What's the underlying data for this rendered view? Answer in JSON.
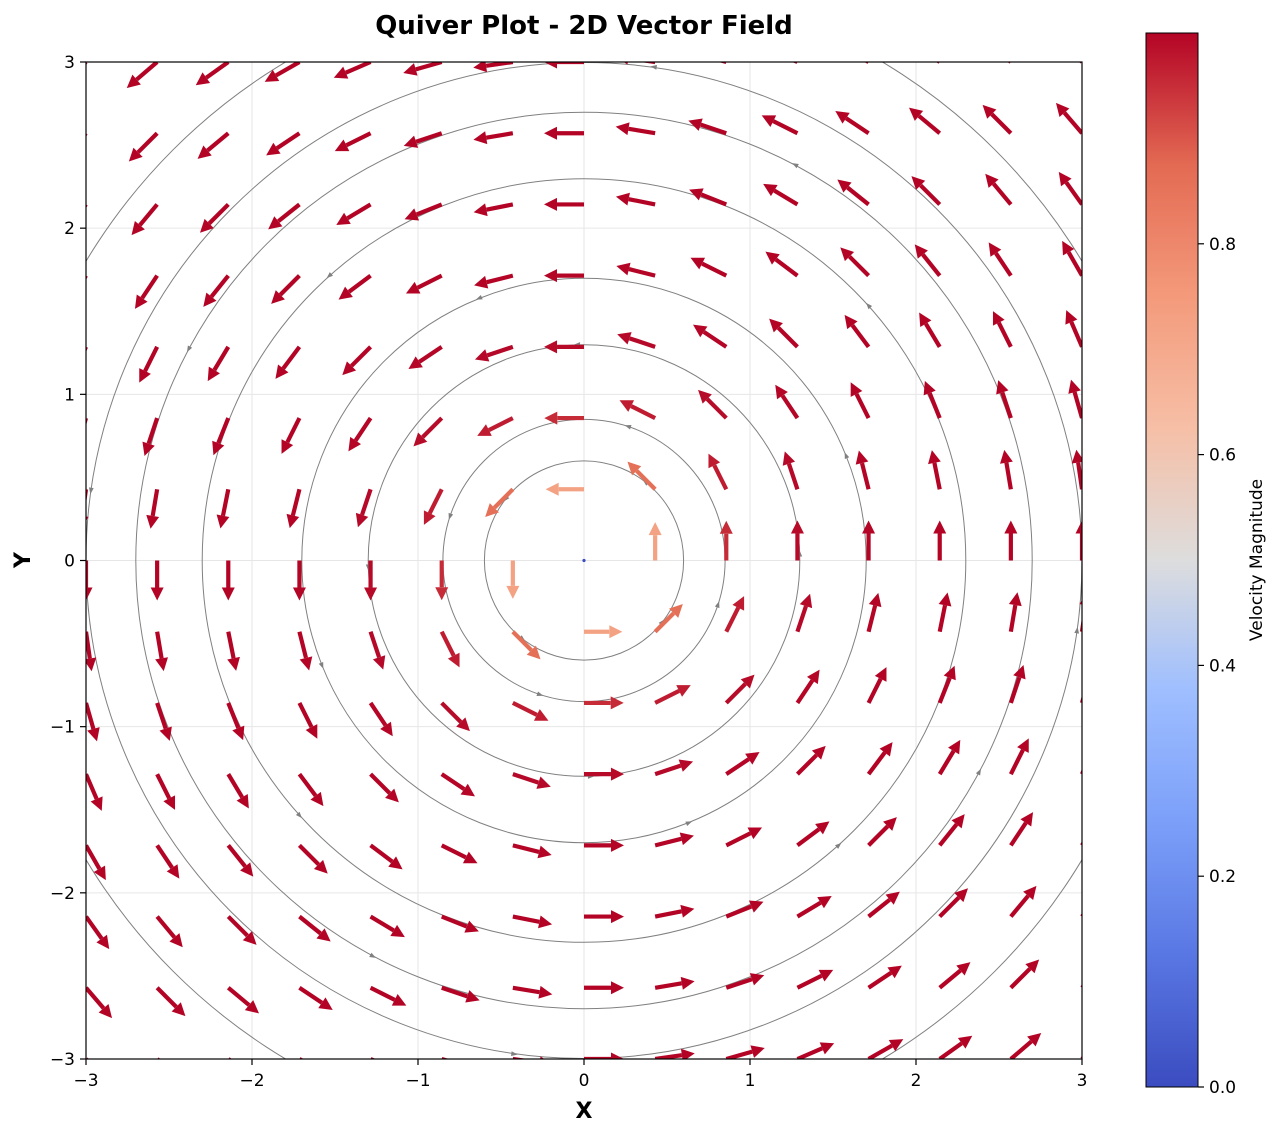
{
  "chart_data": {
    "type": "quiver",
    "title": "Quiver Plot - 2D Vector Field",
    "xlabel": "X",
    "ylabel": "Y",
    "xlim": [
      -3,
      3
    ],
    "ylim": [
      -3,
      3
    ],
    "xticks": [
      -3,
      -2,
      -1,
      0,
      1,
      2,
      3
    ],
    "yticks": [
      -3,
      -2,
      -1,
      0,
      1,
      2,
      3
    ],
    "xtick_labels": [
      "−3",
      "−2",
      "−1",
      "0",
      "1",
      "2",
      "3"
    ],
    "ytick_labels": [
      "−3",
      "−2",
      "−1",
      "0",
      "1",
      "2",
      "3"
    ],
    "grid": true,
    "field": {
      "equation_u": "-y / r",
      "equation_v": "x / r",
      "grid_x_range": [
        -3,
        3
      ],
      "grid_y_range": [
        -3,
        3
      ],
      "grid_points": 15,
      "description": "counter-clockwise rotational field with magnitude tanh-like growth near origin, saturating near 1"
    },
    "streamline_radii": [
      0.6,
      0.85,
      1.3,
      1.7,
      2.3,
      2.7,
      3.0,
      3.5
    ],
    "colorbar": {
      "label": "Velocity Magnitude",
      "colormap": "coolwarm",
      "min": 0.0,
      "max": 1.0,
      "ticks": [
        0.0,
        0.2,
        0.4,
        0.6,
        0.8
      ],
      "tick_labels": [
        "0.0",
        "0.2",
        "0.4",
        "0.6",
        "0.8"
      ]
    },
    "colors": {
      "low": "#3b4cc0",
      "mid": "#dddddd",
      "high": "#b40426",
      "streamline": "#808080",
      "grid": "#e6e6e6"
    }
  }
}
